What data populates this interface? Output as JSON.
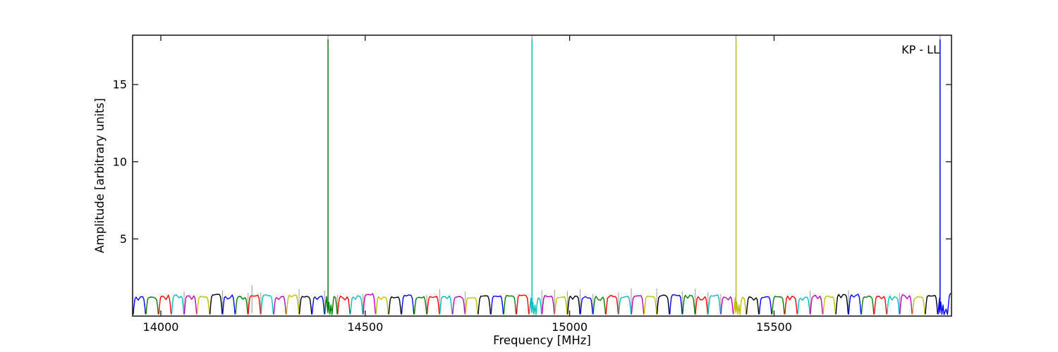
{
  "chart_data": {
    "type": "line",
    "title": "",
    "xlabel": "Frequency [MHz]",
    "ylabel": "Amplitude [arbitrary units]",
    "annotation": "KP - LL",
    "xlim": [
      13931,
      15934
    ],
    "ylim": [
      0,
      18.2
    ],
    "xticks": [
      14000,
      14500,
      15000,
      15500
    ],
    "xtick_labels": [
      "14000",
      "14500",
      "15000",
      "15500"
    ],
    "yticks": [
      5,
      10,
      15
    ],
    "ytick_labels": [
      "5",
      "10",
      "15"
    ],
    "grid": false,
    "legend": "none",
    "tick_direction": "in",
    "color_cycle": [
      "#0000FF",
      "#007F00",
      "#FF0000",
      "#00BFBF",
      "#BF00BF",
      "#BFBF00",
      "#000000"
    ],
    "bands": {
      "count": 64,
      "start_mhz": 13932,
      "width_mhz": 31.25,
      "base_amplitude": 1.32,
      "amplitude_jitter": 0.1,
      "valley_amplitude": 0.14,
      "seed": 11
    },
    "spikes": [
      {
        "freq_mhz": 14409,
        "color": "#007F00",
        "clipped_at_top": true
      },
      {
        "freq_mhz": 14908,
        "color": "#00BFBF",
        "clipped_at_top": true
      },
      {
        "freq_mhz": 15407,
        "color": "#BFBF00",
        "clipped_at_top": true
      },
      {
        "freq_mhz": 15906,
        "color": "#0000FF",
        "clipped_at_top": true
      }
    ],
    "artifacts": {
      "color": "#ABABAB",
      "tall_line": {
        "freq_mhz": 14223,
        "amplitude": 2.0
      },
      "edge_marks_amplitude": 1.55
    }
  }
}
